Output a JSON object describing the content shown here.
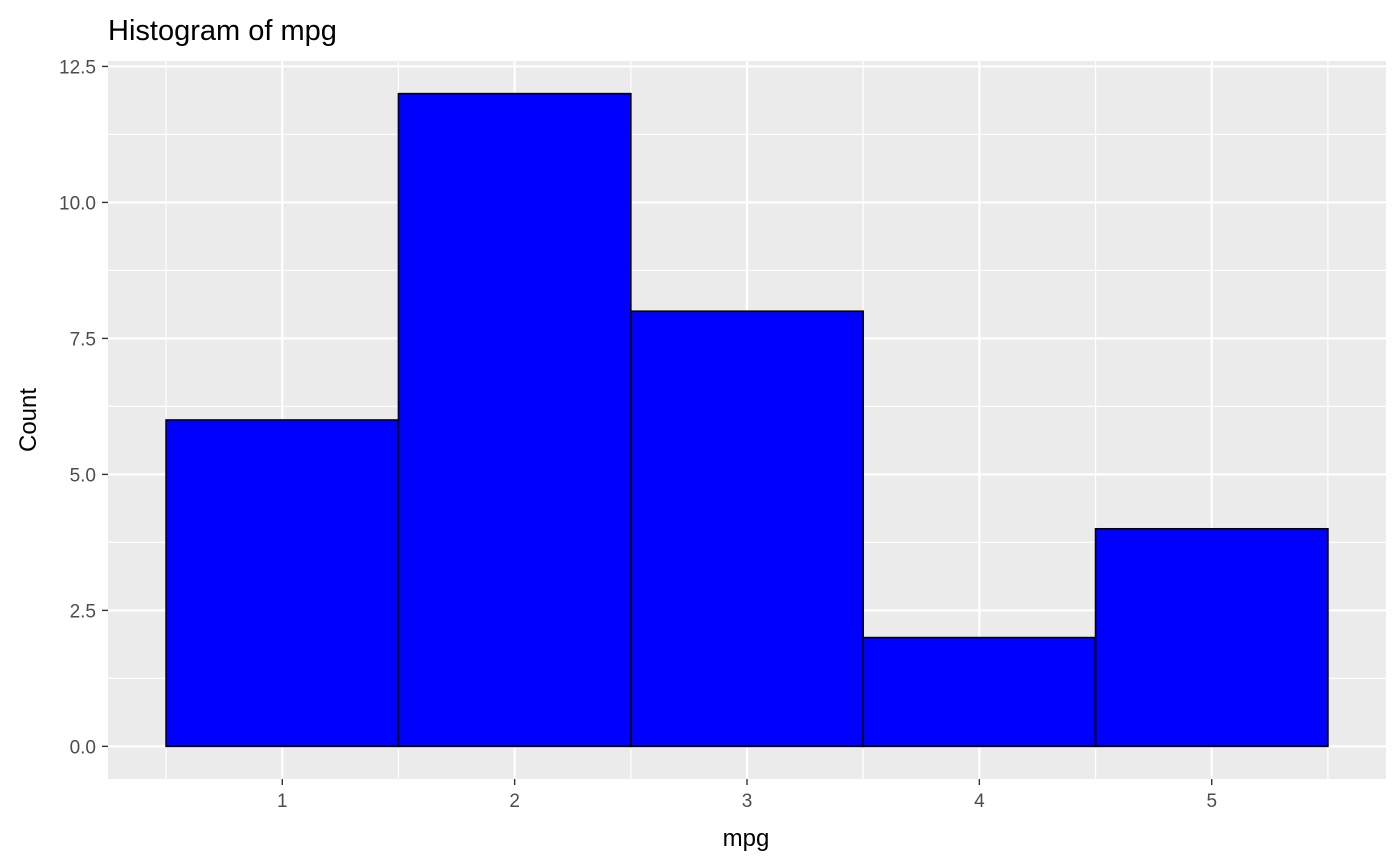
{
  "chart_data": {
    "type": "bar",
    "title": "Histogram of mpg",
    "xlabel": "mpg",
    "ylabel": "Count",
    "categories": [
      "1",
      "2",
      "3",
      "4",
      "5"
    ],
    "x": [
      1,
      2,
      3,
      4,
      5
    ],
    "values": [
      6,
      12,
      8,
      2,
      4
    ],
    "bin_width": 1,
    "xlim": [
      0.25,
      5.75
    ],
    "ylim": [
      -0.6,
      12.6
    ],
    "y_ticks": [
      0,
      2.5,
      5,
      7.5,
      10,
      12.5
    ],
    "y_tick_labels": [
      "0.0",
      "2.5",
      "5.0",
      "7.5",
      "10.0",
      "12.5"
    ],
    "grid": true,
    "legend": "none",
    "colors": {
      "bar_fill": "#0000ff",
      "bar_outline": "#000000",
      "panel_background": "#ebebeb",
      "grid": "#ffffff",
      "tick_text": "#4d4d4d",
      "tick_mark": "#333333"
    }
  }
}
